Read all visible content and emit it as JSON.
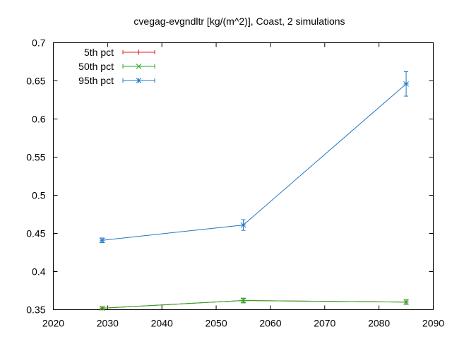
{
  "chart_data": {
    "type": "line",
    "title": "cvegag-evgndltr [kg/(m^2)], Coast, 2 simulations",
    "xlabel": "",
    "ylabel": "",
    "xlim": [
      2020,
      2090
    ],
    "ylim": [
      0.35,
      0.7
    ],
    "xticks": [
      2020,
      2030,
      2040,
      2050,
      2060,
      2070,
      2080,
      2090
    ],
    "yticks": [
      0.35,
      0.4,
      0.45,
      0.5,
      0.55,
      0.6,
      0.65,
      0.7
    ],
    "ytick_labels": [
      "0.35",
      "0.4",
      "0.45",
      "0.5",
      "0.55",
      "0.6",
      "0.65",
      "0.7"
    ],
    "grid": false,
    "legend_position": "top-left",
    "x": [
      2029,
      2055,
      2085
    ],
    "series": [
      {
        "name": "5th pct",
        "color": "#e41a1c",
        "marker": "plus",
        "values": [
          0.352,
          0.362,
          0.36
        ],
        "err": [
          0.0015,
          0.003,
          0.003
        ]
      },
      {
        "name": "50th pct",
        "color": "#22aa22",
        "marker": "cross",
        "values": [
          0.352,
          0.362,
          0.36
        ],
        "err": [
          0.0015,
          0.003,
          0.003
        ]
      },
      {
        "name": "95th pct",
        "color": "#1e78c8",
        "marker": "star",
        "values": [
          0.441,
          0.461,
          0.646
        ],
        "err": [
          0.003,
          0.007,
          0.016
        ]
      }
    ]
  }
}
